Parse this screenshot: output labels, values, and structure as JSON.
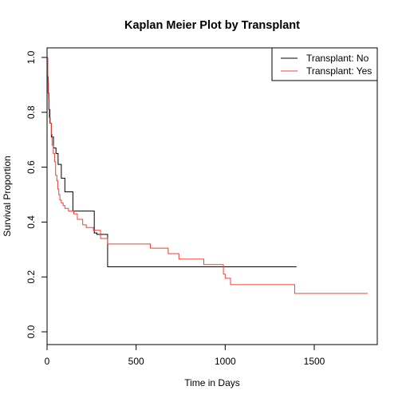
{
  "chart_data": {
    "type": "line",
    "step": true,
    "title": "Kaplan Meier Plot by Transplant",
    "xlabel": "Time in Days",
    "ylabel": "Survival Proportion",
    "xlim": [
      0,
      1800
    ],
    "ylim": [
      0,
      1
    ],
    "xticks": [
      0,
      500,
      1000,
      1500
    ],
    "yticks": [
      0.0,
      0.2,
      0.4,
      0.6,
      0.8,
      1.0
    ],
    "xtick_labels": [
      "0",
      "500",
      "1000",
      "1500"
    ],
    "ytick_labels": [
      "0.0",
      "0.2",
      "0.4",
      "0.6",
      "0.8",
      "1.0"
    ],
    "legend_position": "top-right",
    "grid": false,
    "series": [
      {
        "name": "Transplant: No",
        "color": "#000000",
        "x": [
          0,
          3,
          6,
          10,
          16,
          24,
          36,
          50,
          62,
          80,
          100,
          145,
          265,
          280,
          340,
          1400
        ],
        "y": [
          1.0,
          0.93,
          0.87,
          0.81,
          0.76,
          0.71,
          0.67,
          0.65,
          0.61,
          0.56,
          0.51,
          0.44,
          0.36,
          0.355,
          0.237,
          0.237
        ]
      },
      {
        "name": "Transplant: Yes",
        "color": "#ef4038",
        "x": [
          0,
          4,
          8,
          12,
          18,
          24,
          28,
          35,
          42,
          48,
          55,
          60,
          66,
          72,
          80,
          90,
          100,
          120,
          150,
          170,
          200,
          220,
          260,
          300,
          340,
          580,
          680,
          740,
          880,
          990,
          1000,
          1030,
          1390,
          1800
        ],
        "y": [
          1.0,
          0.91,
          0.85,
          0.78,
          0.76,
          0.72,
          0.68,
          0.65,
          0.62,
          0.57,
          0.55,
          0.52,
          0.5,
          0.48,
          0.47,
          0.46,
          0.45,
          0.44,
          0.43,
          0.41,
          0.39,
          0.38,
          0.37,
          0.34,
          0.32,
          0.305,
          0.285,
          0.265,
          0.245,
          0.21,
          0.195,
          0.172,
          0.14,
          0.14
        ]
      }
    ]
  }
}
